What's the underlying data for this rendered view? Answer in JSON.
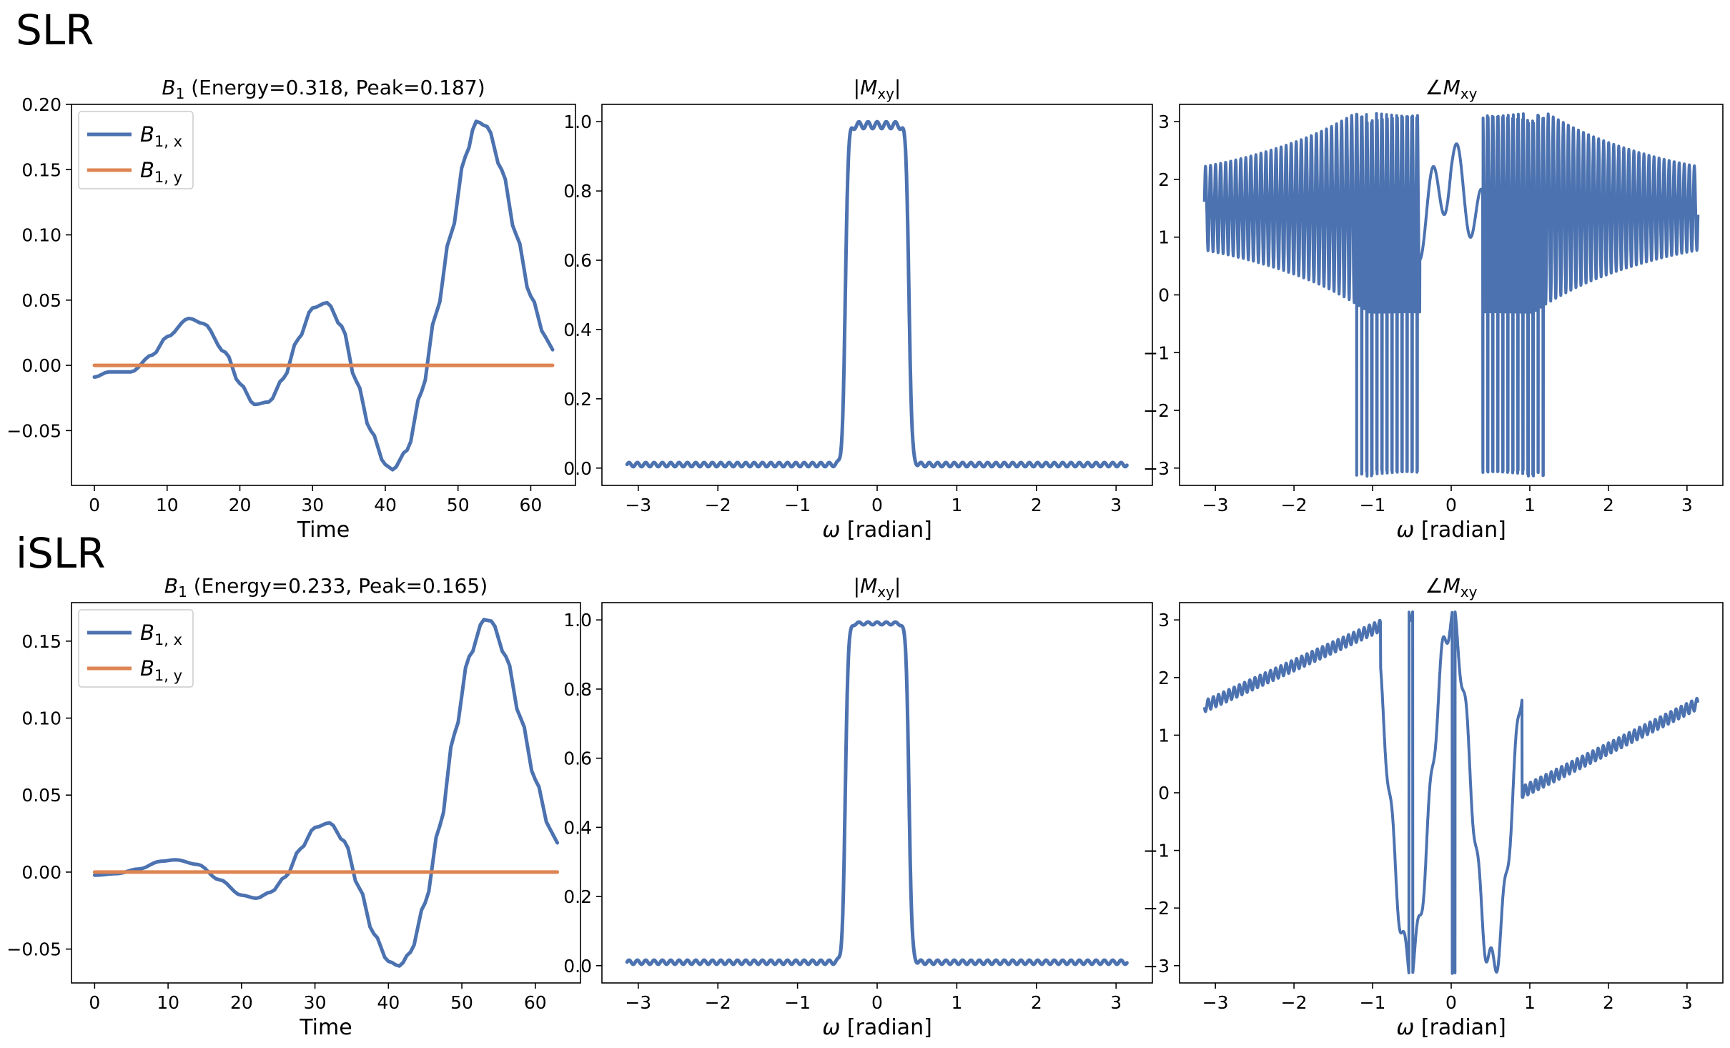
{
  "rows": [
    {
      "label": "SLR"
    },
    {
      "label": "iSLR"
    }
  ],
  "colors": {
    "bx": "#4c72b0",
    "by": "#dd8452",
    "frame": "#000000"
  },
  "chart_data": [
    {
      "type": "line",
      "panel": "SLR B1",
      "title_sym": "B",
      "title_sub": "1",
      "title_rest": " (Energy=0.318, Peak=0.187)",
      "xlabel": "Time",
      "xlim": [
        -3.15,
        66.15
      ],
      "ylim": [
        -0.092,
        0.2
      ],
      "xticks": [
        0,
        10,
        20,
        30,
        40,
        50,
        60
      ],
      "yticks": [
        -0.05,
        0.0,
        0.05,
        0.1,
        0.15,
        0.2
      ],
      "ytick_labels": [
        "−0.05",
        "0.00",
        "0.05",
        "0.10",
        "0.15",
        "0.20"
      ],
      "legend": [
        {
          "sym": "B",
          "sub": "1, x"
        },
        {
          "sym": "B",
          "sub": "1, y"
        }
      ],
      "series": [
        {
          "name": "B1,x",
          "keypoints": [
            [
              0,
              -0.009
            ],
            [
              2,
              -0.005
            ],
            [
              5,
              -0.005
            ],
            [
              8,
              0.008
            ],
            [
              10,
              0.022
            ],
            [
              13,
              0.036
            ],
            [
              15,
              0.032
            ],
            [
              18,
              0.01
            ],
            [
              20,
              -0.014
            ],
            [
              22,
              -0.03
            ],
            [
              24,
              -0.028
            ],
            [
              26,
              -0.01
            ],
            [
              28,
              0.02
            ],
            [
              30,
              0.044
            ],
            [
              32,
              0.048
            ],
            [
              34,
              0.03
            ],
            [
              36,
              -0.012
            ],
            [
              38,
              -0.05
            ],
            [
              40,
              -0.076
            ],
            [
              41,
              -0.08
            ],
            [
              43,
              -0.065
            ],
            [
              45,
              -0.02
            ],
            [
              47,
              0.04
            ],
            [
              49,
              0.1
            ],
            [
              51,
              0.16
            ],
            [
              52.5,
              0.187
            ],
            [
              54,
              0.183
            ],
            [
              56,
              0.15
            ],
            [
              58,
              0.1
            ],
            [
              60,
              0.053
            ],
            [
              62,
              0.022
            ],
            [
              63,
              0.012
            ]
          ]
        },
        {
          "name": "B1,y",
          "keypoints": [
            [
              0,
              0.0
            ],
            [
              63,
              0.0
            ]
          ]
        }
      ]
    },
    {
      "type": "line",
      "panel": "SLR |Mxy|",
      "title": "|M",
      "title_sub": "xy",
      "title_end": "|",
      "xlabel": "ω [radian]",
      "xlim": [
        -3.456,
        3.456
      ],
      "ylim": [
        -0.05,
        1.05
      ],
      "xticks": [
        -3,
        -2,
        -1,
        0,
        1,
        2,
        3
      ],
      "xtick_labels": [
        "−3",
        "−2",
        "−1",
        "0",
        "1",
        "2",
        "3"
      ],
      "yticks": [
        0.0,
        0.2,
        0.4,
        0.6,
        0.8,
        1.0
      ],
      "ytick_labels": [
        "0.0",
        "0.2",
        "0.4",
        "0.6",
        "0.8",
        "1.0"
      ],
      "profile": {
        "passband_edge": 0.4,
        "stopband_level": 0.01,
        "ripple": 0.01,
        "passband_level": 0.99
      }
    },
    {
      "type": "line",
      "panel": "SLR angle Mxy",
      "title": "∠M",
      "title_sub": "xy",
      "xlabel": "ω [radian]",
      "xlim": [
        -3.456,
        3.456
      ],
      "ylim": [
        -3.3,
        3.3
      ],
      "xticks": [
        -3,
        -2,
        -1,
        0,
        1,
        2,
        3
      ],
      "xtick_labels": [
        "−3",
        "−2",
        "−1",
        "0",
        "1",
        "2",
        "3"
      ],
      "yticks": [
        -3,
        -2,
        -1,
        0,
        1,
        2,
        3
      ],
      "ytick_labels": [
        "−3",
        "−2",
        "−1",
        "0",
        "1",
        "2",
        "3"
      ],
      "phase_style": "wrapped-oscillating"
    },
    {
      "type": "line",
      "panel": "iSLR B1",
      "title_sym": "B",
      "title_sub": "1",
      "title_rest": " (Energy=0.233, Peak=0.165)",
      "xlabel": "Time",
      "xlim": [
        -3.15,
        66.15
      ],
      "ylim": [
        -0.072,
        0.175
      ],
      "xticks": [
        0,
        10,
        20,
        30,
        40,
        50,
        60
      ],
      "yticks": [
        -0.05,
        0.0,
        0.05,
        0.1,
        0.15
      ],
      "ytick_labels": [
        "−0.05",
        "0.00",
        "0.05",
        "0.10",
        "0.15"
      ],
      "legend": [
        {
          "sym": "B",
          "sub": "1, x"
        },
        {
          "sym": "B",
          "sub": "1, y"
        }
      ],
      "series": [
        {
          "name": "B1,x",
          "keypoints": [
            [
              0,
              -0.002
            ],
            [
              3,
              -0.001
            ],
            [
              6,
              0.002
            ],
            [
              9,
              0.007
            ],
            [
              11,
              0.008
            ],
            [
              14,
              0.005
            ],
            [
              17,
              -0.005
            ],
            [
              20,
              -0.015
            ],
            [
              22,
              -0.017
            ],
            [
              24,
              -0.013
            ],
            [
              26,
              -0.003
            ],
            [
              28,
              0.015
            ],
            [
              30,
              0.029
            ],
            [
              32,
              0.032
            ],
            [
              34,
              0.02
            ],
            [
              36,
              -0.01
            ],
            [
              38,
              -0.04
            ],
            [
              40,
              -0.058
            ],
            [
              41.5,
              -0.061
            ],
            [
              43,
              -0.052
            ],
            [
              45,
              -0.02
            ],
            [
              47,
              0.03
            ],
            [
              49,
              0.09
            ],
            [
              51,
              0.14
            ],
            [
              53,
              0.164
            ],
            [
              54,
              0.163
            ],
            [
              56,
              0.14
            ],
            [
              58,
              0.1
            ],
            [
              60,
              0.06
            ],
            [
              62,
              0.028
            ],
            [
              63,
              0.019
            ]
          ]
        },
        {
          "name": "B1,y",
          "keypoints": [
            [
              0,
              0.0
            ],
            [
              63,
              0.0
            ]
          ]
        }
      ]
    },
    {
      "type": "line",
      "panel": "iSLR |Mxy|",
      "title": "|M",
      "title_sub": "xy",
      "title_end": "|",
      "xlabel": "ω [radian]",
      "xlim": [
        -3.456,
        3.456
      ],
      "ylim": [
        -0.05,
        1.05
      ],
      "xticks": [
        -3,
        -2,
        -1,
        0,
        1,
        2,
        3
      ],
      "xtick_labels": [
        "−3",
        "−2",
        "−1",
        "0",
        "1",
        "2",
        "3"
      ],
      "yticks": [
        0.0,
        0.2,
        0.4,
        0.6,
        0.8,
        1.0
      ],
      "ytick_labels": [
        "0.0",
        "0.2",
        "0.4",
        "0.6",
        "0.8",
        "1.0"
      ],
      "profile": {
        "passband_edge": 0.4,
        "stopband_level": 0.01,
        "ripple": 0.004,
        "passband_level": 0.99
      }
    },
    {
      "type": "line",
      "panel": "iSLR angle Mxy",
      "title": "∠M",
      "title_sub": "xy",
      "xlabel": "ω [radian]",
      "xlim": [
        -3.456,
        3.456
      ],
      "ylim": [
        -3.3,
        3.3
      ],
      "xticks": [
        -3,
        -2,
        -1,
        0,
        1,
        2,
        3
      ],
      "xtick_labels": [
        "−3",
        "−2",
        "−1",
        "0",
        "1",
        "2",
        "3"
      ],
      "yticks": [
        -3,
        -2,
        -1,
        0,
        1,
        2,
        3
      ],
      "ytick_labels": [
        "−3",
        "−2",
        "−1",
        "0",
        "1",
        "2",
        "3"
      ],
      "phase_style": "smooth-with-wraps"
    }
  ]
}
